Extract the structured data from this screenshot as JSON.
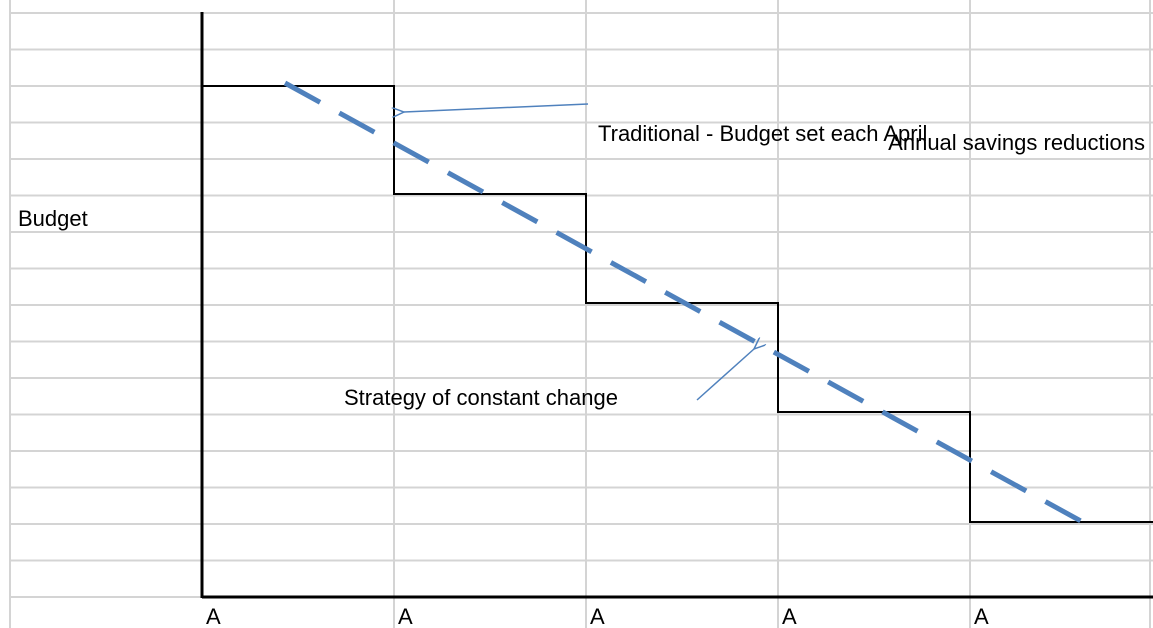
{
  "annotations": {
    "traditional": "Traditional - Budget set each April",
    "annual": "Annual savings reductions",
    "strategy": "Strategy of constant change"
  },
  "y_label": "Budget",
  "x_labels": [
    "A",
    "A",
    "A",
    "A",
    "A"
  ]
}
